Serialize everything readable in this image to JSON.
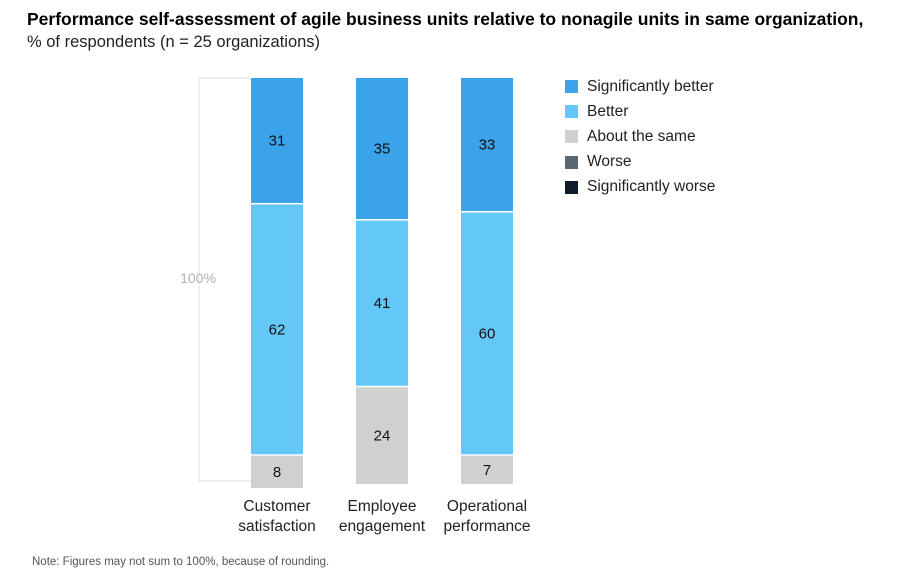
{
  "title": "Performance self-assessment of agile business units relative to nonagile units in same organization,",
  "subtitle": "% of respondents (n = 25 organizations)",
  "note": "Note: Figures may not sum to 100%, because of rounding.",
  "chart_data": {
    "type": "bar",
    "stacked": true,
    "categories": [
      [
        "Customer",
        "satisfaction"
      ],
      [
        "Employee",
        "engagement"
      ],
      [
        "Operational",
        "performance"
      ]
    ],
    "series": [
      {
        "name": "Significantly better",
        "color": "#3aa3ea",
        "values": [
          31,
          35,
          33
        ]
      },
      {
        "name": "Better",
        "color": "#63c8f8",
        "values": [
          62,
          41,
          60
        ]
      },
      {
        "name": "About the same",
        "color": "#d0d0d0",
        "values": [
          8,
          24,
          7
        ]
      },
      {
        "name": "Worse",
        "color": "#5b6770",
        "values": [
          0,
          0,
          0
        ]
      },
      {
        "name": "Significantly worse",
        "color": "#0e1d2b",
        "values": [
          0,
          0,
          0
        ]
      }
    ],
    "total_label": "100%",
    "ylim": [
      0,
      100
    ],
    "legend_position": "right"
  }
}
